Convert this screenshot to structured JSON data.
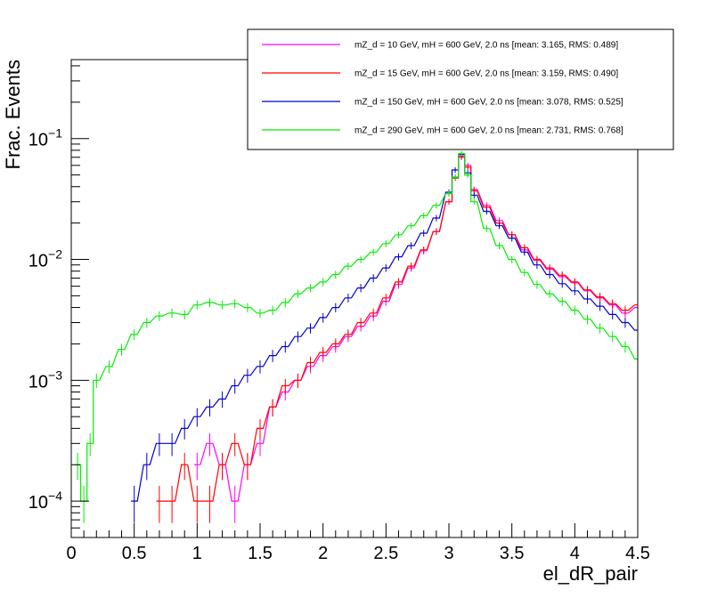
{
  "chart_data": {
    "type": "line",
    "style": "step-histogram-with-error-bars",
    "xlabel": "el_dR_pair",
    "ylabel": "Frac. Events",
    "xlim": [
      0,
      4.5
    ],
    "ylim": [
      5e-05,
      0.45
    ],
    "yscale": "log",
    "grid": false,
    "legend_position": "top-right",
    "x_ticks": [
      {
        "value": 0,
        "label": "0"
      },
      {
        "value": 0.5,
        "label": "0.5"
      },
      {
        "value": 1,
        "label": "1"
      },
      {
        "value": 1.5,
        "label": "1.5"
      },
      {
        "value": 2,
        "label": "2"
      },
      {
        "value": 2.5,
        "label": "2.5"
      },
      {
        "value": 3,
        "label": "3"
      },
      {
        "value": 3.5,
        "label": "3.5"
      },
      {
        "value": 4,
        "label": "4"
      },
      {
        "value": 4.5,
        "label": "4.5"
      }
    ],
    "y_ticks": [
      {
        "value": 0.0001,
        "base": "10",
        "exp": "−4"
      },
      {
        "value": 0.001,
        "base": "10",
        "exp": "−3"
      },
      {
        "value": 0.01,
        "base": "10",
        "exp": "−2"
      },
      {
        "value": 0.1,
        "base": "10",
        "exp": "−1"
      }
    ],
    "bin_width": 0.05,
    "series": [
      {
        "name": "mZ_d = 10 GeV, mH = 600 GeV, 2.0 ns [mean: 3.165, RMS: 0.489]",
        "color": "#ff00ff",
        "x": [
          1.0,
          1.1,
          1.2,
          1.3,
          1.4,
          1.5,
          1.6,
          1.7,
          1.8,
          1.9,
          2.0,
          2.1,
          2.2,
          2.3,
          2.4,
          2.5,
          2.6,
          2.7,
          2.8,
          2.9,
          3.0,
          3.05,
          3.1,
          3.15,
          3.2,
          3.3,
          3.4,
          3.5,
          3.6,
          3.7,
          3.8,
          3.9,
          4.0,
          4.1,
          4.2,
          4.3,
          4.4,
          4.5
        ],
        "y": [
          0.0002,
          0.0003,
          0.0002,
          0.0001,
          0.0002,
          0.0003,
          0.0006,
          0.0008,
          0.001,
          0.0013,
          0.0016,
          0.0019,
          0.0023,
          0.0028,
          0.0034,
          0.0045,
          0.0062,
          0.0085,
          0.0118,
          0.017,
          0.03,
          0.048,
          0.072,
          0.06,
          0.038,
          0.028,
          0.021,
          0.016,
          0.012,
          0.0098,
          0.0083,
          0.0072,
          0.0064,
          0.0055,
          0.0048,
          0.0042,
          0.0036,
          0.004
        ]
      },
      {
        "name": "mZ_d = 15 GeV, mH = 600 GeV, 2.0 ns [mean: 3.159, RMS: 0.490]",
        "color": "#ff0000",
        "x": [
          0.7,
          0.8,
          0.9,
          1.0,
          1.1,
          1.2,
          1.3,
          1.4,
          1.5,
          1.6,
          1.7,
          1.8,
          1.9,
          2.0,
          2.1,
          2.2,
          2.3,
          2.4,
          2.5,
          2.6,
          2.7,
          2.8,
          2.9,
          3.0,
          3.05,
          3.1,
          3.15,
          3.2,
          3.3,
          3.4,
          3.5,
          3.6,
          3.7,
          3.8,
          3.9,
          4.0,
          4.1,
          4.2,
          4.3,
          4.4,
          4.5
        ],
        "y": [
          0.0001,
          0.0001,
          0.0002,
          0.0001,
          0.0001,
          0.0002,
          0.0003,
          0.0002,
          0.0004,
          0.0006,
          0.0009,
          0.001,
          0.0014,
          0.0017,
          0.002,
          0.0024,
          0.003,
          0.0036,
          0.0048,
          0.0065,
          0.0088,
          0.012,
          0.017,
          0.03,
          0.047,
          0.07,
          0.058,
          0.037,
          0.027,
          0.02,
          0.016,
          0.0125,
          0.01,
          0.0085,
          0.0074,
          0.0065,
          0.0056,
          0.0049,
          0.0043,
          0.0038,
          0.0042
        ]
      },
      {
        "name": "mZ_d = 150 GeV, mH = 600 GeV, 2.0 ns [mean: 3.078, RMS: 0.525]",
        "color": "#0000cc",
        "x": [
          0.5,
          0.6,
          0.7,
          0.8,
          0.9,
          1.0,
          1.1,
          1.2,
          1.3,
          1.4,
          1.5,
          1.6,
          1.7,
          1.8,
          1.9,
          2.0,
          2.1,
          2.2,
          2.3,
          2.4,
          2.5,
          2.6,
          2.7,
          2.8,
          2.9,
          3.0,
          3.05,
          3.1,
          3.15,
          3.2,
          3.3,
          3.4,
          3.5,
          3.6,
          3.7,
          3.8,
          3.9,
          4.0,
          4.1,
          4.2,
          4.3,
          4.4,
          4.5
        ],
        "y": [
          0.0001,
          0.0002,
          0.0003,
          0.0003,
          0.0004,
          0.0005,
          0.0006,
          0.0007,
          0.0009,
          0.0011,
          0.0013,
          0.0016,
          0.0019,
          0.0023,
          0.0027,
          0.0033,
          0.004,
          0.0048,
          0.0058,
          0.007,
          0.0085,
          0.0105,
          0.013,
          0.0165,
          0.022,
          0.036,
          0.055,
          0.074,
          0.052,
          0.034,
          0.025,
          0.019,
          0.015,
          0.0115,
          0.009,
          0.0075,
          0.0063,
          0.0055,
          0.0047,
          0.0041,
          0.0035,
          0.003,
          0.0026
        ]
      },
      {
        "name": "mZ_d = 290 GeV, mH = 600 GeV, 2.0 ns [mean: 2.731, RMS: 0.768]",
        "color": "#00ee00",
        "x": [
          0.05,
          0.1,
          0.15,
          0.2,
          0.3,
          0.4,
          0.5,
          0.6,
          0.7,
          0.8,
          0.9,
          1.0,
          1.1,
          1.2,
          1.3,
          1.4,
          1.5,
          1.6,
          1.7,
          1.8,
          1.9,
          2.0,
          2.1,
          2.2,
          2.3,
          2.4,
          2.5,
          2.6,
          2.7,
          2.8,
          2.9,
          3.0,
          3.05,
          3.1,
          3.15,
          3.2,
          3.3,
          3.4,
          3.5,
          3.6,
          3.7,
          3.8,
          3.9,
          4.0,
          4.1,
          4.2,
          4.3,
          4.4,
          4.5
        ],
        "y": [
          0.0002,
          0.0001,
          0.0003,
          0.001,
          0.0013,
          0.0018,
          0.0024,
          0.003,
          0.0034,
          0.0036,
          0.0035,
          0.0042,
          0.0044,
          0.0042,
          0.0043,
          0.004,
          0.0036,
          0.0038,
          0.0044,
          0.0052,
          0.0058,
          0.0065,
          0.0075,
          0.0088,
          0.01,
          0.0115,
          0.0135,
          0.016,
          0.019,
          0.023,
          0.028,
          0.035,
          0.048,
          0.075,
          0.05,
          0.03,
          0.018,
          0.013,
          0.01,
          0.0078,
          0.0062,
          0.0052,
          0.0045,
          0.0038,
          0.0032,
          0.0027,
          0.0023,
          0.0019,
          0.0015
        ]
      }
    ]
  }
}
